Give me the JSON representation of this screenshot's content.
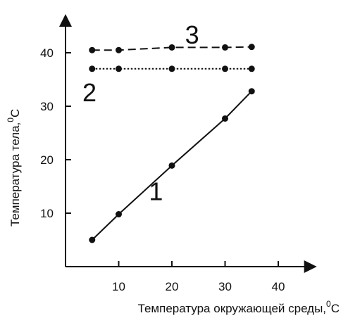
{
  "chart_data": {
    "type": "line",
    "xlabel": "Температура окружающей среды,",
    "xlabel_unit": "C",
    "ylabel": "Температура тела,",
    "ylabel_unit": "C",
    "unit_degree": "0",
    "xlim": [
      0,
      47
    ],
    "ylim": [
      0,
      47
    ],
    "xticks": [
      10,
      20,
      30,
      40
    ],
    "yticks": [
      10,
      20,
      30,
      40
    ],
    "grid": false,
    "series": [
      {
        "name": "1",
        "style": "solid",
        "x": [
          5,
          10,
          20,
          30,
          35
        ],
        "y": [
          5,
          9.8,
          18.9,
          27.7,
          32.8
        ],
        "label_at": [
          17,
          14
        ]
      },
      {
        "name": "2",
        "style": "dotted",
        "x": [
          5,
          10,
          20,
          30,
          35
        ],
        "y": [
          37,
          37,
          37,
          37,
          37
        ],
        "label_at": [
          4.5,
          32.5
        ]
      },
      {
        "name": "3",
        "style": "dashed",
        "x": [
          5,
          10,
          20,
          30,
          35
        ],
        "y": [
          40.5,
          40.5,
          41,
          41,
          41.1
        ],
        "label_at": [
          23.8,
          43.3
        ]
      }
    ]
  }
}
